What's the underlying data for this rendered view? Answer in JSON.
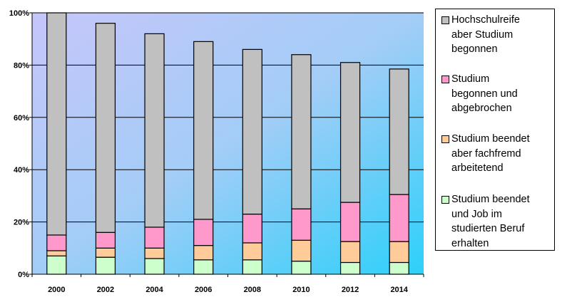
{
  "chart_data": {
    "type": "bar",
    "stacked": true,
    "categories": [
      "2000",
      "2002",
      "2004",
      "2006",
      "2008",
      "2010",
      "2012",
      "2014"
    ],
    "ylim": [
      0,
      100
    ],
    "yticks": [
      "0%",
      "20%",
      "40%",
      "60%",
      "80%",
      "100%"
    ],
    "ytick_values": [
      0,
      20,
      40,
      60,
      80,
      100
    ],
    "grid": "horizontal",
    "legend_position": "right",
    "plot_background": "gradient lavender-to-cyan",
    "series": [
      {
        "name": "Studium beendet und Job im studierten Beruf erhalten",
        "color": "#CCFFCC",
        "values": [
          7,
          6.5,
          6,
          5.5,
          5.5,
          5,
          4.5,
          4.5
        ]
      },
      {
        "name": "Studium beendet aber fachfremd arbeitetend",
        "color": "#FFCC99",
        "values": [
          2,
          3.5,
          4,
          5.5,
          6.5,
          8,
          8,
          8
        ]
      },
      {
        "name": "Studium begonnen und abgebrochen",
        "color": "#FF99CC",
        "values": [
          6,
          6,
          8,
          10,
          11,
          12,
          15,
          18
        ]
      },
      {
        "name": "Hochschulreife aber Studium begonnen",
        "color": "#C0C0C0",
        "values": [
          85,
          80,
          74,
          68,
          63,
          59,
          53.5,
          48
        ]
      }
    ]
  },
  "legend": {
    "items": [
      {
        "label": "Hochschulreife\naber Studium\nbegonnen",
        "color": "#C0C0C0"
      },
      {
        "label": "Studium\nbegonnen und\nabgebrochen",
        "color": "#FF99CC"
      },
      {
        "label": "Studium beendet\naber fachfremd\narbeitetend",
        "color": "#FFCC99"
      },
      {
        "label": "Studium beendet\nund Job im\nstudierten Beruf\nerhalten",
        "color": "#CCFFCC"
      }
    ]
  }
}
